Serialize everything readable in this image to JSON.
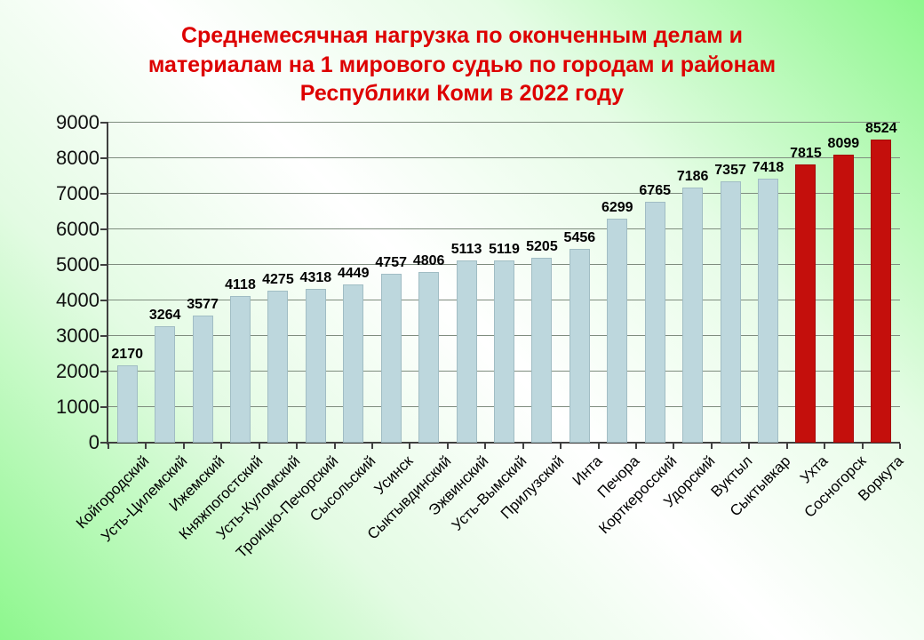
{
  "title": {
    "text": "Среднемесячная нагрузка по оконченным делам и материалам на 1 мирового судью по городам и районам Республики Коми в 2022 году",
    "lines": [
      "Среднемесячная нагрузка по оконченным делам и",
      "материалам на 1 мирового судью по городам и районам",
      "Республики Коми в 2022 году"
    ],
    "color": "#dd0000"
  },
  "chart_data": {
    "type": "bar",
    "categories": [
      "Койгородский",
      "Усть-Цилемский",
      "Ижемский",
      "Княжпогостский",
      "Усть-Куломский",
      "Троицко-Печорский",
      "Сысольский",
      "Усинск",
      "Сыктывдинский",
      "Эжвинский",
      "Усть-Вымский",
      "Прилузский",
      "Инта",
      "Печора",
      "Корткеросский",
      "Удорский",
      "Вуктыл",
      "Сыктывкар",
      "Ухта",
      "Сосногорск",
      "Воркута"
    ],
    "values": [
      2170,
      3264,
      3577,
      4118,
      4275,
      4318,
      4449,
      4757,
      4806,
      5113,
      5119,
      5205,
      5456,
      6299,
      6765,
      7186,
      7357,
      7418,
      7815,
      8099,
      8524
    ],
    "highlight_categories": [
      "Ухта",
      "Сосногорск",
      "Воркута"
    ],
    "bar_colors": {
      "default": "#bdd7dd",
      "highlight": "#c40f0c"
    },
    "value_labels": true,
    "title": "Среднемесячная нагрузка по оконченным делам и материалам на 1 мирового судью по городам и районам Республики Коми в 2022 году",
    "xlabel": "",
    "ylabel": "",
    "ylim": [
      0,
      9000
    ],
    "yticks": [
      0,
      1000,
      2000,
      3000,
      4000,
      5000,
      6000,
      7000,
      8000,
      9000
    ],
    "grid": true,
    "legend_position": "none"
  },
  "colors": {
    "background_edge": "#8df78d",
    "background_center": "#ffffff",
    "gridline": "#7e8c7e",
    "axis": "#404040",
    "title_text": "#dd0000",
    "label_text": "#000000"
  }
}
